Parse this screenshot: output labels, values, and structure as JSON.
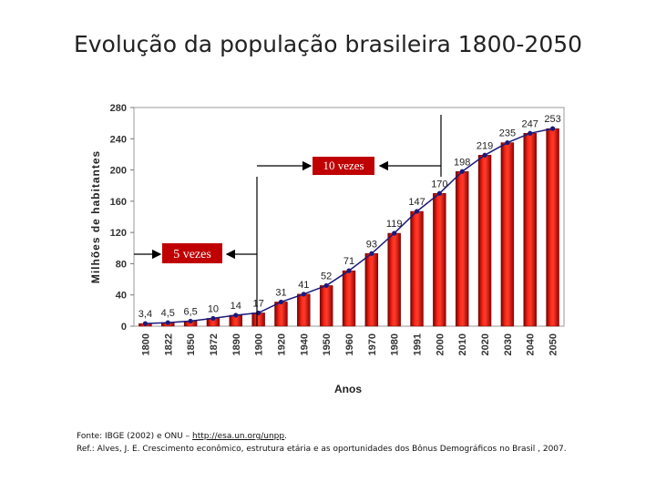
{
  "title": "Evolução da população brasileira 1800-2050",
  "chart_data": {
    "type": "bar",
    "categories": [
      "1800",
      "1822",
      "1850",
      "1872",
      "1890",
      "1900",
      "1920",
      "1940",
      "1950",
      "1960",
      "1970",
      "1980",
      "1991",
      "2000",
      "2010",
      "2020",
      "2030",
      "2040",
      "2050"
    ],
    "tick_labels": [
      "1800",
      "1822",
      "1850",
      "1872",
      "1890",
      "1900",
      "1920",
      "1940",
      "1950",
      "1960",
      "1970",
      "1980",
      "1991",
      "2000",
      "2010",
      "2020",
      "2030",
      "2040",
      "2050"
    ],
    "values": [
      3.4,
      4.5,
      6.5,
      10,
      14,
      17,
      31,
      41,
      52,
      71,
      93,
      119,
      147,
      170,
      198,
      219,
      235,
      247,
      253
    ],
    "value_labels": [
      "3,4",
      "4,5",
      "6,5",
      "10",
      "14",
      "17",
      "31",
      "41",
      "52",
      "71",
      "93",
      "119",
      "147",
      "170",
      "198",
      "219",
      "235",
      "247",
      "253"
    ],
    "ylabel": "Milhões de habitantes",
    "xlabel": "Anos",
    "ylim": [
      0,
      280
    ],
    "yticks": [
      0,
      40,
      80,
      120,
      160,
      200,
      240,
      280
    ],
    "bar_color": "#e00000",
    "line_color": "#1a1a7a",
    "annotations": [
      {
        "text": "10 vezes"
      },
      {
        "text": "5 vezes"
      }
    ]
  },
  "footer": {
    "source_prefix": "Fonte: IBGE (2002) e ONU – ",
    "source_link": "http://esa.un.org/unpp",
    "source_suffix": ".",
    "reference": "Ref.: Alves, J. E. Crescimento econômico, estrutura etária e as oportunidades dos Bônus Demográficos no Brasil , 2007."
  }
}
